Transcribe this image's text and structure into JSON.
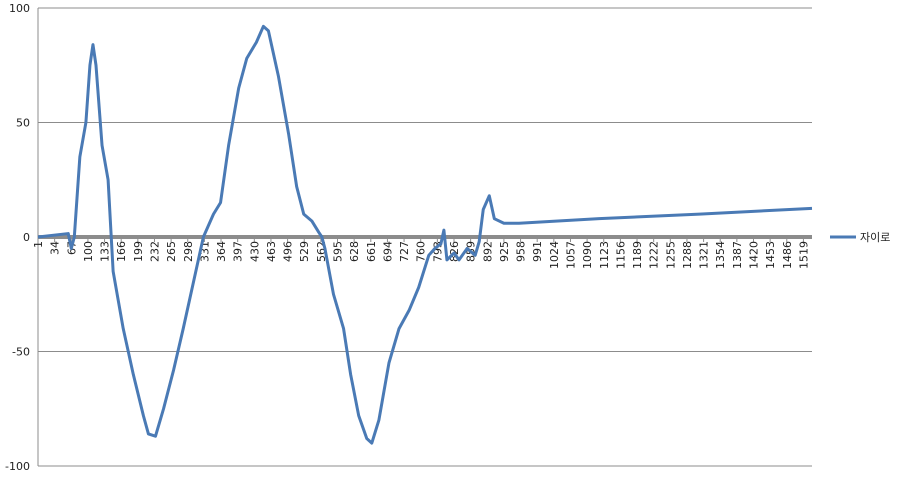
{
  "chart_data": {
    "type": "line",
    "x": [
      1,
      61,
      67,
      73,
      84,
      96,
      104,
      110,
      116,
      128,
      140,
      150,
      170,
      190,
      210,
      220,
      234,
      250,
      270,
      289,
      309,
      329,
      349,
      363,
      379,
      399,
      415,
      434,
      448,
      458,
      478,
      498,
      514,
      528,
      544,
      558,
      564,
      570,
      587,
      607,
      621,
      637,
      653,
      663,
      677,
      697,
      717,
      737,
      756,
      776,
      788,
      800,
      806,
      812,
      826,
      836,
      852,
      868,
      876,
      884,
      896,
      906,
      925,
      955,
      1114,
      1313,
      1536
    ],
    "series": [
      {
        "name": "자이로",
        "color": "#4a7ab5",
        "values": [
          0,
          1.5,
          -5,
          0,
          35,
          50,
          75,
          84,
          75,
          40,
          25,
          -15,
          -40,
          -60,
          -78,
          -86,
          -87,
          -75,
          -58,
          -40,
          -20,
          0,
          10,
          15,
          40,
          65,
          78,
          85,
          92,
          90,
          70,
          45,
          22,
          10,
          7,
          2,
          0,
          -5,
          -25,
          -40,
          -60,
          -78,
          -88,
          -90,
          -80,
          -55,
          -40,
          -32,
          -22,
          -8,
          -5,
          -3,
          3,
          -10,
          -7,
          -10,
          -5,
          -8,
          -2,
          12,
          18,
          8,
          6,
          6,
          8,
          10,
          12.5
        ]
      }
    ],
    "xlim": [
      1,
      1536
    ],
    "xticks": [
      1,
      34,
      67,
      100,
      133,
      166,
      199,
      232,
      265,
      298,
      331,
      364,
      397,
      430,
      463,
      496,
      529,
      562,
      595,
      628,
      661,
      694,
      727,
      760,
      793,
      826,
      859,
      892,
      925,
      958,
      991,
      1024,
      1057,
      1090,
      1123,
      1156,
      1189,
      1222,
      1255,
      1288,
      1321,
      1354,
      1387,
      1420,
      1453,
      1486,
      1519
    ],
    "ylim": [
      -100,
      100
    ],
    "yticks": [
      -100,
      -50,
      0,
      50,
      100
    ],
    "grid": true,
    "legend": "right"
  }
}
